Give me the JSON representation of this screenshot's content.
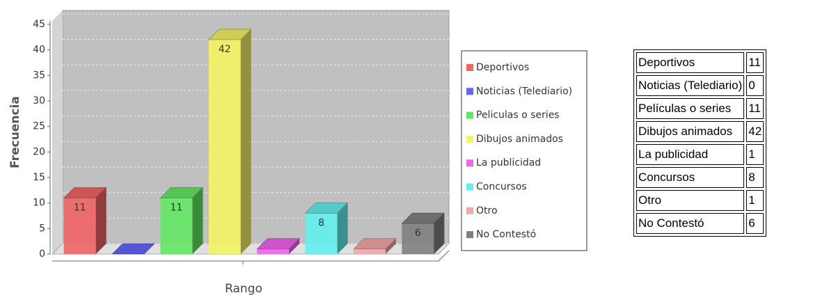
{
  "chart_data": {
    "type": "bar3d",
    "ylabel": "Frecuencia",
    "xlabel": "Rango",
    "ylim": [
      0,
      45
    ],
    "yticks": [
      0,
      5,
      10,
      15,
      20,
      25,
      30,
      35,
      40,
      45
    ],
    "grid": true,
    "series": [
      {
        "name": "Deportivos",
        "color": "#f06464",
        "values": [
          11
        ]
      },
      {
        "name": "Noticias (Telediario)",
        "color": "#6464ff",
        "values": [
          0
        ]
      },
      {
        "name": "Peliculas o series",
        "color": "#64e864",
        "values": [
          11
        ]
      },
      {
        "name": "Dibujos animados",
        "color": "#f4f464",
        "values": [
          42
        ]
      },
      {
        "name": "La publicidad",
        "color": "#f064f0",
        "values": [
          1
        ]
      },
      {
        "name": "Concursos",
        "color": "#64eeee",
        "values": [
          8
        ]
      },
      {
        "name": "Otro",
        "color": "#f4a8a8",
        "values": [
          1
        ]
      },
      {
        "name": "No Contestó",
        "color": "#808080",
        "values": [
          6
        ]
      }
    ],
    "value_labels": [
      "11",
      null,
      "11",
      "42",
      null,
      "8",
      null,
      "6"
    ]
  },
  "table": {
    "rows": [
      [
        "Deportivos",
        "11"
      ],
      [
        "Noticias (Telediario)",
        "0"
      ],
      [
        "Películas o series",
        "11"
      ],
      [
        "Dibujos animados",
        "42"
      ],
      [
        "La publicidad",
        "1"
      ],
      [
        "Concursos",
        "8"
      ],
      [
        "Otro",
        "1"
      ],
      [
        "No Contestó",
        "6"
      ]
    ]
  }
}
